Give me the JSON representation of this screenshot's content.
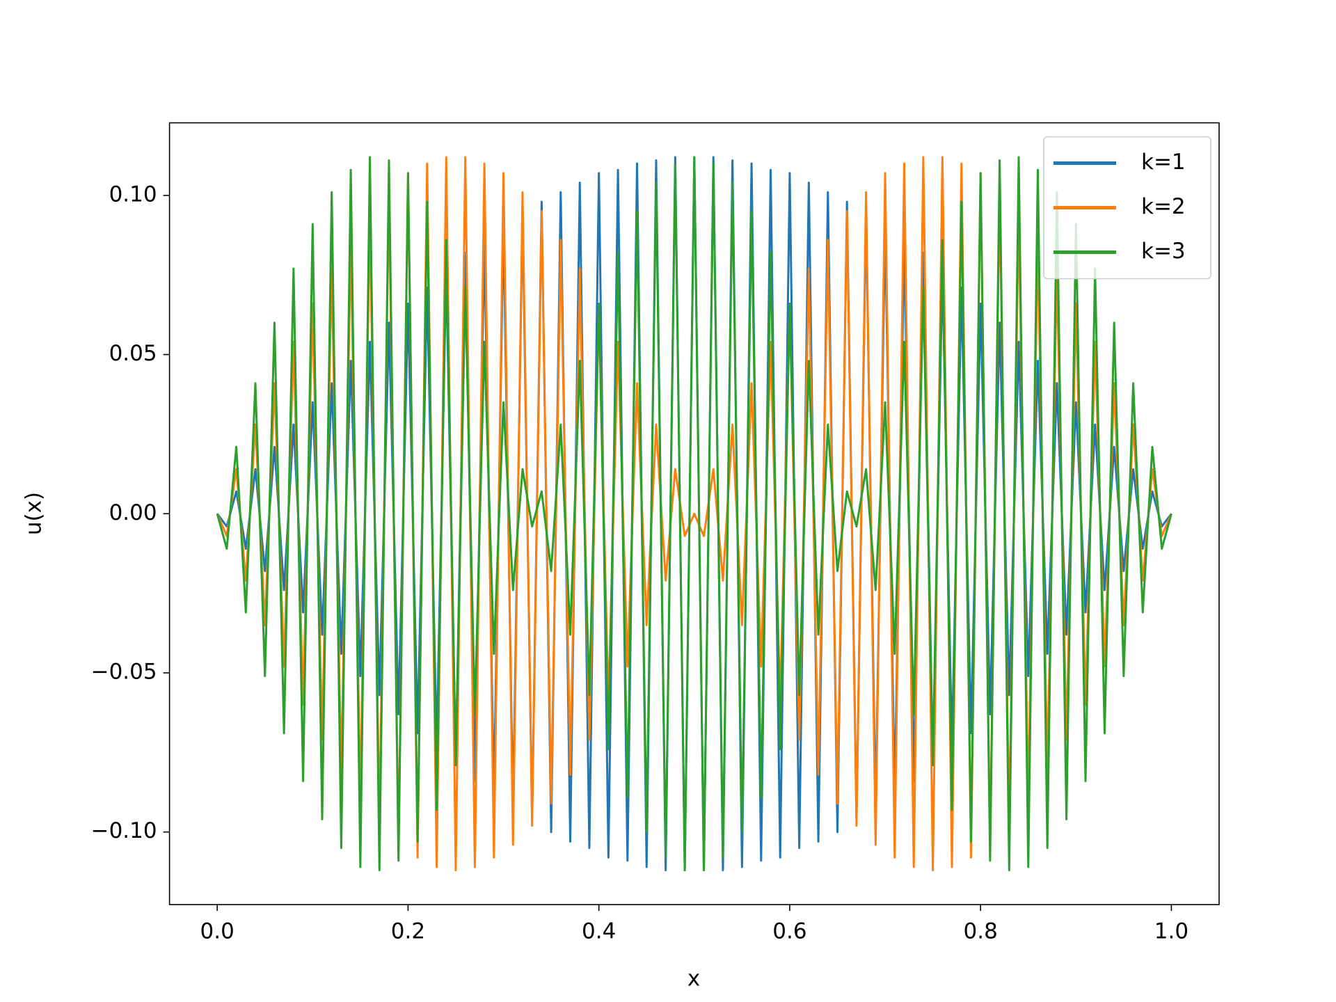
{
  "chart_data": {
    "type": "line",
    "xlabel": "x",
    "ylabel": "u(x)",
    "x": [
      0,
      0.01,
      0.02,
      0.03,
      0.04,
      0.05,
      0.06,
      0.07,
      0.08,
      0.09,
      0.1,
      0.11,
      0.12,
      0.13,
      0.14,
      0.15,
      0.16,
      0.17,
      0.18,
      0.19,
      0.2,
      0.21,
      0.22,
      0.23,
      0.24,
      0.25,
      0.26,
      0.27,
      0.28,
      0.29,
      0.3,
      0.31,
      0.32,
      0.33,
      0.34,
      0.35,
      0.36,
      0.37,
      0.38,
      0.39,
      0.4,
      0.41,
      0.42,
      0.43,
      0.44,
      0.45,
      0.46,
      0.47,
      0.48,
      0.49,
      0.5,
      0.51,
      0.52,
      0.53,
      0.54,
      0.55,
      0.56,
      0.57,
      0.58,
      0.59,
      0.6,
      0.61,
      0.62,
      0.63,
      0.64,
      0.65,
      0.66,
      0.67,
      0.68,
      0.69,
      0.7,
      0.71,
      0.72,
      0.73,
      0.74,
      0.75,
      0.76,
      0.77,
      0.78,
      0.79,
      0.8,
      0.81,
      0.82,
      0.83,
      0.84,
      0.85,
      0.86,
      0.87,
      0.88,
      0.89,
      0.9,
      0.91,
      0.92,
      0.93,
      0.94,
      0.95,
      0.96,
      0.97,
      0.98,
      0.99,
      1
    ],
    "series": [
      {
        "name": "k=1",
        "color": "#1f77b4",
        "values": [
          0,
          -0.004,
          0.007,
          -0.011,
          0.014,
          -0.018,
          0.021,
          -0.024,
          0.028,
          -0.031,
          0.035,
          -0.038,
          0.041,
          -0.044,
          0.048,
          -0.051,
          0.054,
          -0.057,
          0.06,
          -0.063,
          0.066,
          -0.069,
          0.071,
          -0.074,
          0.077,
          -0.079,
          0.082,
          -0.084,
          0.086,
          -0.089,
          0.091,
          -0.093,
          0.095,
          -0.096,
          0.098,
          -0.1,
          0.101,
          -0.103,
          0.104,
          -0.105,
          0.107,
          -0.108,
          0.108,
          -0.109,
          0.11,
          -0.111,
          0.111,
          -0.112,
          0.112,
          -0.112,
          0.112,
          -0.112,
          0.112,
          -0.112,
          0.111,
          -0.111,
          0.11,
          -0.109,
          0.108,
          -0.108,
          0.107,
          -0.105,
          0.104,
          -0.103,
          0.101,
          -0.1,
          0.098,
          -0.096,
          0.095,
          -0.093,
          0.091,
          -0.089,
          0.086,
          -0.084,
          0.082,
          -0.079,
          0.077,
          -0.074,
          0.071,
          -0.069,
          0.066,
          -0.063,
          0.06,
          -0.057,
          0.054,
          -0.051,
          0.048,
          -0.044,
          0.041,
          -0.038,
          0.035,
          -0.031,
          0.028,
          -0.024,
          0.021,
          -0.018,
          0.014,
          -0.011,
          0.007,
          -0.004,
          0
        ]
      },
      {
        "name": "k=2",
        "color": "#ff7f0e",
        "values": [
          0,
          -0.007,
          0.014,
          -0.021,
          0.028,
          -0.035,
          0.041,
          -0.048,
          0.054,
          -0.06,
          0.066,
          -0.071,
          0.077,
          -0.082,
          0.086,
          -0.091,
          0.095,
          -0.098,
          0.101,
          -0.104,
          0.107,
          -0.108,
          0.11,
          -0.111,
          0.112,
          -0.112,
          0.112,
          -0.111,
          0.11,
          -0.108,
          0.107,
          -0.104,
          0.101,
          -0.098,
          0.095,
          -0.091,
          0.086,
          -0.082,
          0.077,
          -0.071,
          0.066,
          -0.06,
          0.054,
          -0.048,
          0.041,
          -0.035,
          0.028,
          -0.021,
          0.014,
          -0.007,
          0,
          -0.007,
          0.014,
          -0.021,
          0.028,
          -0.035,
          0.041,
          -0.048,
          0.054,
          -0.06,
          0.066,
          -0.071,
          0.077,
          -0.082,
          0.086,
          -0.091,
          0.095,
          -0.098,
          0.101,
          -0.104,
          0.107,
          -0.108,
          0.11,
          -0.111,
          0.112,
          -0.112,
          0.112,
          -0.111,
          0.11,
          -0.108,
          0.107,
          -0.104,
          0.101,
          -0.098,
          0.095,
          -0.091,
          0.086,
          -0.082,
          0.077,
          -0.071,
          0.066,
          -0.06,
          0.054,
          -0.048,
          0.041,
          -0.035,
          0.028,
          -0.021,
          0.014,
          -0.007,
          0
        ]
      },
      {
        "name": "k=3",
        "color": "#2ca02c",
        "values": [
          0,
          -0.011,
          0.021,
          -0.031,
          0.041,
          -0.051,
          0.06,
          -0.069,
          0.077,
          -0.084,
          0.091,
          -0.096,
          0.101,
          -0.105,
          0.108,
          -0.111,
          0.112,
          -0.112,
          0.111,
          -0.109,
          0.107,
          -0.103,
          0.098,
          -0.093,
          0.086,
          -0.079,
          0.071,
          -0.063,
          0.054,
          -0.044,
          0.035,
          -0.024,
          0.014,
          -0.004,
          0.007,
          -0.018,
          0.028,
          -0.038,
          0.048,
          -0.057,
          0.066,
          -0.074,
          0.082,
          -0.089,
          0.095,
          -0.1,
          0.104,
          -0.108,
          0.11,
          -0.112,
          0.112,
          -0.112,
          0.11,
          -0.108,
          0.104,
          -0.1,
          0.095,
          -0.089,
          0.082,
          -0.074,
          0.066,
          -0.057,
          0.048,
          -0.038,
          0.028,
          -0.018,
          0.007,
          -0.004,
          0.014,
          -0.024,
          0.035,
          -0.044,
          0.054,
          -0.063,
          0.071,
          -0.079,
          0.086,
          -0.093,
          0.098,
          -0.103,
          0.107,
          -0.109,
          0.111,
          -0.112,
          0.112,
          -0.111,
          0.108,
          -0.105,
          0.101,
          -0.096,
          0.091,
          -0.084,
          0.077,
          -0.069,
          0.06,
          -0.051,
          0.041,
          -0.031,
          0.021,
          -0.011,
          0
        ]
      }
    ],
    "xlim": [
      -0.05,
      1.05
    ],
    "xticks": [
      {
        "value": 0,
        "label": "0.0"
      },
      {
        "value": 0.2,
        "label": "0.2"
      },
      {
        "value": 0.4,
        "label": "0.4"
      },
      {
        "value": 0.6,
        "label": "0.6"
      },
      {
        "value": 0.8,
        "label": "0.8"
      },
      {
        "value": 1,
        "label": "1.0"
      }
    ],
    "ylim": [
      -0.1228,
      0.1228
    ],
    "yticks": [
      {
        "value": -0.1,
        "label": "−0.10"
      },
      {
        "value": -0.05,
        "label": "−0.05"
      },
      {
        "value": 0,
        "label": "0.00"
      },
      {
        "value": 0.05,
        "label": "0.05"
      },
      {
        "value": 0.1,
        "label": "0.10"
      }
    ],
    "legend": "upper right"
  }
}
